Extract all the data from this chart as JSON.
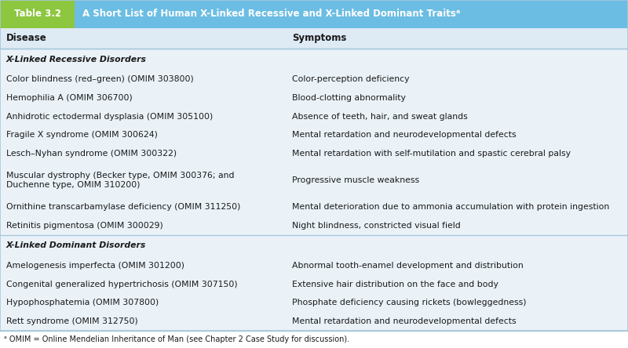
{
  "header_left": "Table 3.2",
  "header_right": "A Short List of Human X-Linked Recessive and X-Linked Dominant Traitsᵃ",
  "col_headers": [
    "Disease",
    "Symptoms"
  ],
  "header_green": "#8dc63f",
  "header_blue": "#6bbde3",
  "col_header_bg": "#deeaf4",
  "body_bg": "#eaf2f8",
  "rows": [
    {
      "type": "section",
      "disease": "X-Linked Recessive Disorders",
      "symptoms": ""
    },
    {
      "type": "data",
      "disease": "Color blindness (red–green) (OMIM 303800)",
      "symptoms": "Color-perception deficiency"
    },
    {
      "type": "data",
      "disease": "Hemophilia A (OMIM 306700)",
      "symptoms": "Blood-clotting abnormality"
    },
    {
      "type": "data",
      "disease": "Anhidrotic ectodermal dysplasia (OMIM 305100)",
      "symptoms": "Absence of teeth, hair, and sweat glands"
    },
    {
      "type": "data",
      "disease": "Fragile X syndrome (OMIM 300624)",
      "symptoms": "Mental retardation and neurodevelopmental defects"
    },
    {
      "type": "data",
      "disease": "Lesch–Nyhan syndrome (OMIM 300322)",
      "symptoms": "Mental retardation with self-mutilation and spastic cerebral palsy"
    },
    {
      "type": "data2",
      "disease_line1": "Muscular dystrophy (Becker type, OMIM 300376; and",
      "disease_line2": "Duchenne type, OMIM 310200)",
      "symptoms": "Progressive muscle weakness"
    },
    {
      "type": "data",
      "disease": "Ornithine transcarbamylase deficiency (OMIM 311250)",
      "symptoms": "Mental deterioration due to ammonia accumulation with protein ingestion"
    },
    {
      "type": "data",
      "disease": "Retinitis pigmentosa (OMIM 300029)",
      "symptoms": "Night blindness, constricted visual field"
    },
    {
      "type": "section",
      "disease": "X-Linked Dominant Disorders",
      "symptoms": ""
    },
    {
      "type": "data",
      "disease": "Amelogenesis imperfecta (OMIM 301200)",
      "symptoms": "Abnormal tooth-enamel development and distribution"
    },
    {
      "type": "data",
      "disease": "Congenital generalized hypertrichosis (OMIM 307150)",
      "symptoms": "Extensive hair distribution on the face and body"
    },
    {
      "type": "data",
      "disease": "Hypophosphatemia (OMIM 307800)",
      "symptoms": "Phosphate deficiency causing rickets (bowleggedness)"
    },
    {
      "type": "data",
      "disease": "Rett syndrome (OMIM 312750)",
      "symptoms": "Mental retardation and neurodevelopmental defects"
    }
  ],
  "footnote": "ᵃ OMIM = Online Mendelian Inheritance of Man (see Chapter 2 Case Study for discussion).",
  "header_fontsize": 8.5,
  "col_header_fontsize": 8.5,
  "body_fontsize": 7.8,
  "section_fontsize": 7.8,
  "footnote_fontsize": 7.0,
  "text_color": "#1a1a1a",
  "divider_color": "#a8c8dc",
  "col_split": 0.455
}
